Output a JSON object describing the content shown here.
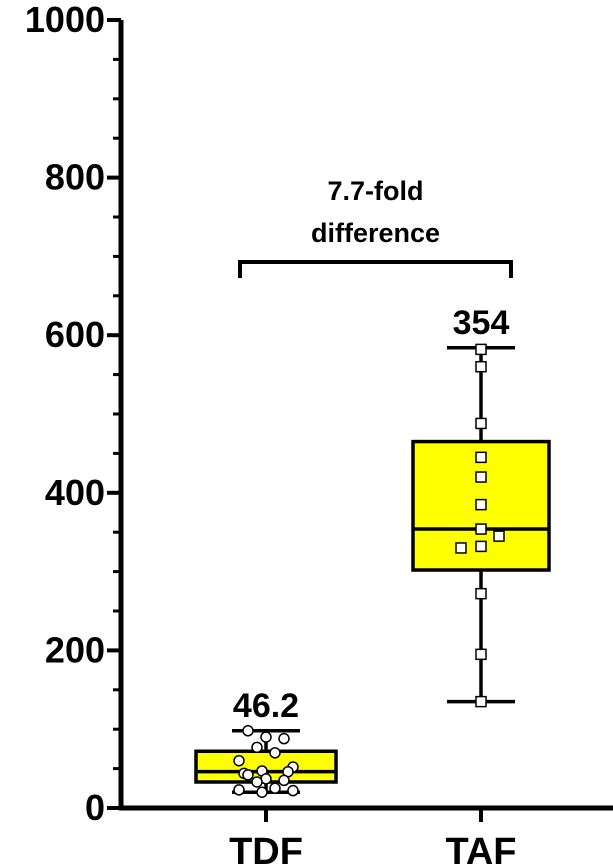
{
  "chart_data": {
    "type": "box",
    "title": "",
    "xlabel": "",
    "ylabel": "",
    "ylim": [
      0,
      1000
    ],
    "yticks": [
      {
        "value": 0,
        "label": "0"
      },
      {
        "value": 200,
        "label": "200"
      },
      {
        "value": 400,
        "label": "400"
      },
      {
        "value": 600,
        "label": "600"
      },
      {
        "value": 800,
        "label": "800"
      },
      {
        "value": 1000,
        "label": "1000"
      }
    ],
    "minor_tick_step": 50,
    "grid": false,
    "box_color": "#ffff00",
    "groups": [
      {
        "category": "TDF",
        "marker": "circle",
        "whisker_min": 20,
        "q1": 33,
        "median": 46.2,
        "q3": 72,
        "whisker_max": 98,
        "median_label": "46.2",
        "points": [
          98,
          90,
          88,
          77,
          70,
          60,
          52,
          47,
          46,
          44,
          42,
          37,
          35,
          33,
          25,
          23,
          22,
          20
        ]
      },
      {
        "category": "TAF",
        "marker": "square",
        "whisker_min": 135,
        "q1": 302,
        "median": 354,
        "q3": 465,
        "whisker_max": 584,
        "median_label": "354",
        "points": [
          582,
          560,
          488,
          445,
          420,
          385,
          354,
          345,
          332,
          330,
          272,
          195,
          135
        ]
      }
    ],
    "annotation": {
      "line1": "7.7-fold",
      "line2": "difference"
    }
  }
}
